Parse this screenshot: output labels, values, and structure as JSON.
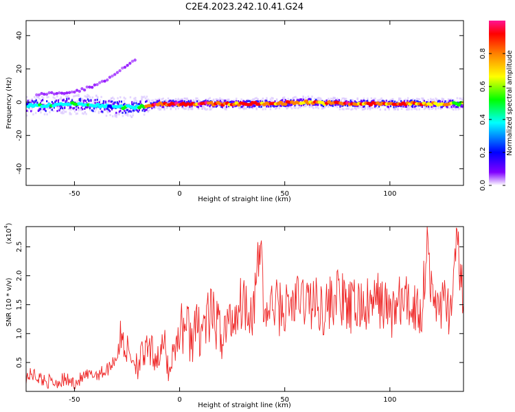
{
  "title": "C2E4.2023.242.10.41.G24",
  "spectrogram": {
    "xlabel": "Height of straight line (km)",
    "ylabel": "Frequency (Hz)",
    "xlim": [
      -73,
      135
    ],
    "ylim": [
      -50,
      49
    ],
    "xticks": [
      -50,
      0,
      50,
      100
    ],
    "yticks": [
      -40,
      -20,
      0,
      20,
      40
    ],
    "colorbar": {
      "label": "Normalized spectral amplitude",
      "range": [
        0.0,
        1.0
      ],
      "ticks": [
        0.0,
        0.2,
        0.4,
        0.6,
        0.8
      ],
      "tick_labels": [
        "0.0",
        "0.2",
        "0.4",
        "0.6",
        "0.8"
      ],
      "colormap": [
        "#ffffff",
        "#8000ff",
        "#0000ff",
        "#00ffff",
        "#00ff00",
        "#ffff00",
        "#ff8000",
        "#ff0000",
        "#ff1493"
      ]
    }
  },
  "snr": {
    "xlabel": "Height of straight line (km)",
    "ylabel": "SNR (10 * v/v)",
    "scale_note": "(x10",
    "scale_exp": "4",
    "scale_close": ")",
    "xlim": [
      -73,
      135
    ],
    "ylim": [
      0.0,
      2.85
    ],
    "xticks": [
      -50,
      0,
      50,
      100
    ],
    "yticks": [
      0.5,
      1.0,
      1.5,
      2.0,
      2.5
    ],
    "ytick_labels": [
      "0.5",
      "1.0",
      "1.5",
      "2.0",
      "2.5"
    ],
    "line_color": "#ee2222"
  },
  "chart_data": [
    {
      "type": "heatmap",
      "description_series": [
        {
          "x": [
            -73,
            -60,
            -50,
            -40,
            -30,
            -20,
            -10,
            0,
            20,
            40,
            60,
            80,
            100,
            120,
            135
          ],
          "freq_center": [
            -2,
            -2,
            -1,
            -2,
            -3,
            -3,
            -1,
            -1,
            -1,
            -1,
            0,
            -1,
            -1,
            -1,
            -1
          ],
          "amplitude": [
            0.4,
            0.45,
            0.45,
            0.4,
            0.4,
            0.5,
            0.95,
            0.9,
            0.9,
            0.85,
            0.8,
            0.9,
            0.85,
            0.85,
            0.6
          ]
        }
      ],
      "title": "C2E4.2023.242.10.41.G24",
      "xlabel": "Height of straight line (km)",
      "ylabel": "Frequency (Hz)",
      "xlim": [
        -73,
        135
      ],
      "ylim": [
        -50,
        49
      ]
    },
    {
      "type": "line",
      "title": "",
      "xlabel": "Height of straight line (km)",
      "ylabel": "SNR (10 * v/v)",
      "xlim": [
        -73,
        135
      ],
      "ylim": [
        0.0,
        2.85
      ],
      "y_scale_factor": 10000,
      "x": [
        -73,
        -70,
        -65,
        -60,
        -55,
        -50,
        -45,
        -40,
        -35,
        -30,
        -28,
        -25,
        -20,
        -15,
        -10,
        -7,
        -5,
        -3,
        0,
        3,
        5,
        10,
        15,
        20,
        25,
        30,
        35,
        39,
        40,
        45,
        50,
        55,
        60,
        65,
        70,
        72,
        75,
        80,
        85,
        90,
        95,
        100,
        105,
        110,
        115,
        118,
        120,
        125,
        130,
        132,
        135
      ],
      "y": [
        0.25,
        0.3,
        0.2,
        0.15,
        0.2,
        0.15,
        0.25,
        0.3,
        0.35,
        0.6,
        0.95,
        0.7,
        0.5,
        0.7,
        0.6,
        0.8,
        0.3,
        0.7,
        1.0,
        1.2,
        0.95,
        1.1,
        1.3,
        1.0,
        1.25,
        1.6,
        1.4,
        2.65,
        1.3,
        1.5,
        1.4,
        1.55,
        1.6,
        1.5,
        1.45,
        1.55,
        1.7,
        1.4,
        1.5,
        1.45,
        1.6,
        1.35,
        1.55,
        1.5,
        1.4,
        2.7,
        1.5,
        1.55,
        1.4,
        2.85,
        1.3
      ]
    }
  ]
}
